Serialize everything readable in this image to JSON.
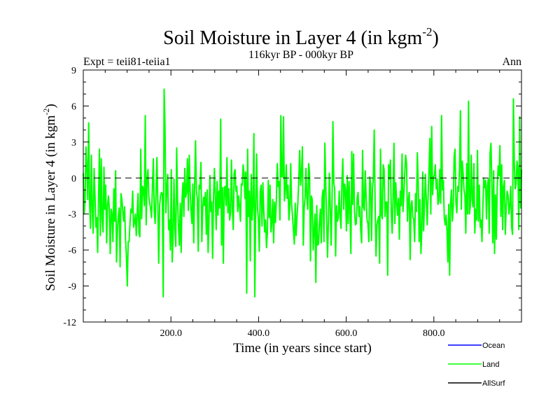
{
  "chart_data": {
    "type": "line",
    "title": "Soil Moisture in Layer 4 (in kgm",
    "title_sup": "-2",
    "title_suffix": ")",
    "subtitle": "116kyr BP - 000kyr BP",
    "experiment_label": "Expt = teii81-teiia1",
    "season_label": "Ann",
    "xlabel": "Time (in years since start)",
    "ylabel": "Soil Moisture in Layer 4 (in kgm",
    "ylabel_sup": "-2",
    "ylabel_suffix": ")",
    "xlim": [
      0,
      1000
    ],
    "ylim": [
      -12,
      9
    ],
    "x_ticks": [
      200,
      400,
      600,
      800
    ],
    "x_tick_labels": [
      "200.0",
      "400.0",
      "600.0",
      "800.0"
    ],
    "y_ticks": [
      -12,
      -9,
      -6,
      -3,
      0,
      3,
      6,
      9
    ],
    "y_tick_labels": [
      "-12",
      "-9",
      "-6",
      "-3",
      "0",
      "3",
      "6",
      "9"
    ],
    "zero_line": true,
    "grid": false,
    "legend_position": "bottom-right",
    "series": [
      {
        "name": "Land",
        "color": "#00ff00",
        "summary": {
          "min": -9.9,
          "max": 7.4,
          "mean": -1.8
        },
        "values": [
          0.4,
          -3.0,
          -1.8,
          2.6,
          0.9,
          -1.8,
          4.6,
          -1.9,
          -4.2,
          1.9,
          -2.6,
          -4.6,
          0.8,
          -1.4,
          -4.1,
          -3.3,
          -6.2,
          -1.6,
          2.4,
          -4.8,
          1.6,
          -3.4,
          -4.5,
          0.9,
          -2.6,
          -0.6,
          -5.4,
          -2.3,
          -1.5,
          -2.6,
          -6.3,
          -2.6,
          -3.0,
          -5.3,
          -0.9,
          -3.6,
          0.6,
          -7.0,
          -4.4,
          -3.2,
          -2.5,
          -7.4,
          -1.3,
          -1.8,
          -2.8,
          -3.6,
          -2.4,
          -5.0,
          -6.5,
          -9.0,
          -5.3,
          -5.3,
          -3.8,
          -2.6,
          -2.9,
          -1.1,
          -4.1,
          -3.7,
          -3.0,
          -4.8,
          -3.0,
          -1.3,
          -4.6,
          -4.9,
          2.4,
          -3.4,
          -0.7,
          -0.9,
          -2.3,
          5.2,
          -3.9,
          -0.2,
          0.7,
          -1.6,
          -2.1,
          -2.6,
          -3.3,
          -0.7,
          1.6,
          -2.7,
          -3.8,
          -1.2,
          1.7,
          -2.1,
          -7.1,
          -2.3,
          -1.5,
          -1.2,
          -1.3,
          -9.9,
          7.4,
          4.3,
          -2.9,
          -0.8,
          0.3,
          -4.3,
          -3.5,
          -6.0,
          0.7,
          -7.0,
          -4.9,
          -0.1,
          -4.2,
          -5.7,
          2.5,
          -1.8,
          -4.1,
          -5.6,
          -2.1,
          -6.2,
          -1.7,
          -0.4,
          -3.2,
          0.8,
          -1.6,
          -1.2,
          1.6,
          -2.7,
          1.9,
          -1.1,
          -2.7,
          -3.8,
          -0.5,
          -5.4,
          -0.7,
          3.1,
          -1.1,
          -1.7,
          -6.1,
          -0.6,
          -0.9,
          1.3,
          -5.3,
          -2.5,
          -1.6,
          -2.3,
          -1.2,
          -4.7,
          -1.0,
          -6.2,
          -3.4,
          0.2,
          -2.8,
          -2.0,
          -6.7,
          -1.8,
          0.8,
          -1.5,
          -4.3,
          -0.3,
          -3.1,
          -1.1,
          -2.5,
          4.9,
          -5.6,
          -0.8,
          -7.1,
          -0.8,
          -0.7,
          -2.3,
          1.7,
          -2.9,
          -0.9,
          -3.5,
          -2.9,
          1.5,
          -2.5,
          -4.3,
          0.4,
          0.7,
          -1.1,
          -0.7,
          -2.8,
          -1.5,
          -2.4,
          -3.6,
          -0.5,
          -0.6,
          1.1,
          0.4,
          -1.7,
          0.5,
          -9.6,
          2.4,
          -3.2,
          -1.1,
          -6.9,
          0.3,
          -3.5,
          -2.1,
          3.7,
          -9.9,
          -2.3,
          2.0,
          -2.5,
          -3.5,
          -6.1,
          -1.2,
          -0.6,
          -4.0,
          -0.4,
          -2.7,
          -4.5,
          -3.5,
          -5.8,
          -4.6,
          -0.2,
          -3.3,
          -0.6,
          -4.5,
          -3.7,
          -1.8,
          -5.4,
          -2.0,
          -3.7,
          -1.9,
          1.2,
          -0.7,
          -0.3,
          -3.5,
          5.2,
          0.1,
          0.1,
          5.1,
          -1.9,
          -1.1,
          1.1,
          -1.7,
          -0.6,
          -3.5,
          -2.3,
          1.2,
          -2.2,
          -3.2,
          -4.3,
          -5.5,
          -2.1,
          -4.8,
          -3.2,
          -2.0,
          -0.1,
          2.3,
          -0.6,
          0.3,
          2.6,
          -5.6,
          -2.5,
          -1.6,
          0.8,
          -1.7,
          -2.6,
          1.2,
          0.4,
          -6.9,
          -1.5,
          -1.8,
          -6.0,
          -4.4,
          -3.0,
          -8.7,
          -2.3,
          -5.6,
          -5.5,
          -3.7,
          -2.6,
          -5.4,
          -1.6,
          -1.0,
          -5.3,
          2.9,
          -0.4,
          -3.6,
          -6.6,
          -3.5,
          0.4,
          -2.4,
          -5.6,
          -2.1,
          4.7,
          -0.4,
          -1.0,
          -6.5,
          -2.3,
          -3.6,
          -3.3,
          -1.1,
          -3.2,
          -4.2,
          -0.4,
          1.6,
          -2.6,
          -0.5,
          -0.9,
          -4.4,
          0.2,
          -3.8,
          -0.3,
          -2.8,
          -6.3,
          2.2,
          -2.2,
          2.0,
          -2.7,
          -3.9,
          -3.8,
          -1.7,
          -1.2,
          -3.2,
          -2.4,
          -4.4,
          -5.4,
          2.3,
          -2.4,
          -2.7,
          0.6,
          -1.6,
          -3.5,
          -3.8,
          -5.3,
          0.1,
          -0.5,
          -5.2,
          -0.9,
          0.0,
          4.0,
          -2.3,
          -6.5,
          -3.9,
          -3.5,
          -3.2,
          -7.1,
          2.4,
          -3.1,
          -3.4,
          1.1,
          0.7,
          -3.2,
          -2.0,
          -2.0,
          -8.1,
          1.1,
          -0.1,
          1.5,
          -2.9,
          -4.6,
          -1.6,
          2.9,
          -3.8,
          -0.4,
          -2.0,
          -3.1,
          -1.7,
          -5.1,
          -1.1,
          -2.3,
          2.0,
          -2.8,
          -1.4,
          0.4,
          1.9,
          1.2,
          -3.6,
          -1.8,
          -1.2,
          -6.8,
          -2.3,
          -1.9,
          -3.3,
          -3.4,
          -5.3,
          -1.3,
          -2.8,
          2.1,
          -0.4,
          -5.3,
          -1.8,
          -6.3,
          -4.3,
          0.5,
          -4.4,
          -2.1,
          0.3,
          -1.9,
          -3.9,
          -1.5,
          0.7,
          3.3,
          -3.0,
          4.3,
          -1.4,
          0.1,
          0.2,
          1.1,
          -0.9,
          -0.1,
          -2.2,
          -1.9,
          0.7,
          -2.1,
          5.2,
          -1.0,
          -0.2,
          -3.3,
          -3.9,
          -3.1,
          -4.3,
          -7.0,
          -2.2,
          -8.1,
          -2.1,
          -1.0,
          -3.6,
          -2.4,
          1.8,
          2.4,
          -2.1,
          -2.9,
          -0.7,
          -1.1,
          0.9,
          5.6,
          -2.6,
          1.4,
          0.4,
          -1.0,
          -1.5,
          -4.6,
          1.2,
          -3.0,
          6.4,
          -3.0,
          -2.4,
          1.9,
          -1.8,
          -2.4,
          1.2,
          -4.6,
          -2.6,
          -3.5,
          2.3,
          -3.6,
          -0.6,
          -4.1,
          -3.5,
          -5.3,
          -2.4,
          0.0,
          -0.8,
          -0.2,
          -3.4,
          -0.7,
          -0.1,
          -4.6,
          2.1,
          2.9,
          -0.6,
          -5.4,
          0.6,
          -6.3,
          -1.4,
          -5.1,
          -0.7,
          1.0,
          0.2,
          2.7,
          -3.2,
          1.1,
          -4.3,
          -0.7,
          -0.2,
          -4.7,
          -2.4,
          -1.1,
          -1.4,
          -3.0,
          -2.3,
          -0.7,
          -4.1,
          -4.7,
          6.6,
          1.2,
          -0.9,
          -0.5,
          1.4,
          0.8,
          -4.3,
          5.1,
          -2.5,
          0.7
        ]
      }
    ]
  },
  "legend": {
    "items": [
      {
        "label": "Ocean",
        "color": "#0000ff"
      },
      {
        "label": "Land",
        "color": "#00ff00"
      },
      {
        "label": "AllSurf",
        "color": "#000000"
      }
    ]
  }
}
